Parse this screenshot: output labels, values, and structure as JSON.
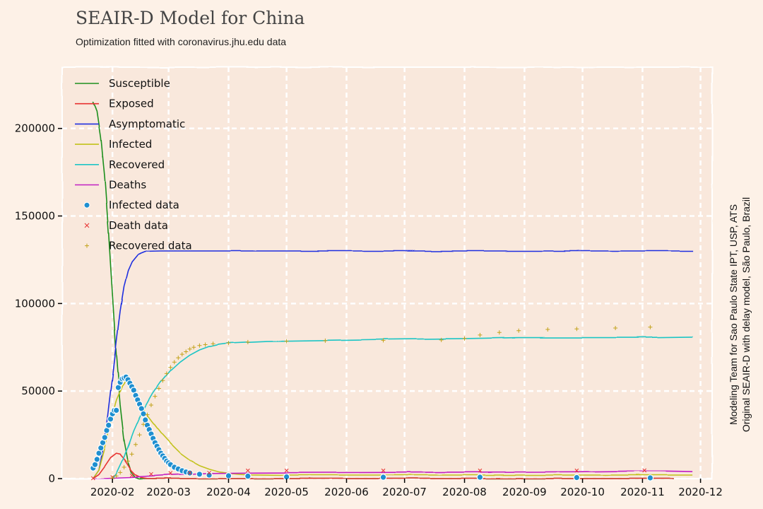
{
  "chart_data": {
    "type": "line",
    "title": "SEAIR-D Model for China",
    "subtitle": "Optimization fitted with coronavirus.jhu.edu data",
    "side_text": [
      "Modeling Team for Sao Paulo State IPT, USP, ATS",
      "Original SEAIR-D with delay model, São Paulo, Brazil"
    ],
    "xlabel": "",
    "ylabel": "",
    "x_ticks": [
      "2020-02",
      "2020-03",
      "2020-04",
      "2020-05",
      "2020-06",
      "2020-07",
      "2020-08",
      "2020-09",
      "2020-10",
      "2020-11",
      "2020-12"
    ],
    "x_tick_days": [
      10,
      39,
      70,
      100,
      131,
      161,
      192,
      223,
      253,
      284,
      314
    ],
    "y_ticks": [
      0,
      50000,
      100000,
      150000,
      200000
    ],
    "xlim_days": [
      -16,
      320
    ],
    "ylim": [
      0,
      235000
    ],
    "grid": true,
    "legend_position": "top-left",
    "x_unit_note": "days since 2020-01-22",
    "series": [
      {
        "name": "Susceptible",
        "kind": "line",
        "color": "#1f8f1f",
        "points": [
          [
            0,
            215000
          ],
          [
            2,
            210000
          ],
          [
            4,
            195000
          ],
          [
            6,
            172000
          ],
          [
            8,
            140000
          ],
          [
            10,
            105000
          ],
          [
            12,
            70000
          ],
          [
            14,
            42000
          ],
          [
            16,
            22000
          ],
          [
            18,
            10000
          ],
          [
            20,
            3500
          ],
          [
            22,
            800
          ],
          [
            24,
            0
          ],
          [
            40,
            0
          ],
          [
            100,
            0
          ],
          [
            200,
            0
          ],
          [
            300,
            0
          ]
        ]
      },
      {
        "name": "Exposed",
        "kind": "line",
        "color": "#e83030",
        "points": [
          [
            0,
            300
          ],
          [
            3,
            2500
          ],
          [
            6,
            7000
          ],
          [
            9,
            12000
          ],
          [
            12,
            14500
          ],
          [
            14,
            14000
          ],
          [
            16,
            11500
          ],
          [
            18,
            8000
          ],
          [
            20,
            4500
          ],
          [
            22,
            2200
          ],
          [
            25,
            600
          ],
          [
            28,
            100
          ],
          [
            40,
            0
          ],
          [
            300,
            0
          ]
        ]
      },
      {
        "name": "Asymptomatic",
        "kind": "line",
        "color": "#1f2fe0",
        "points": [
          [
            0,
            200
          ],
          [
            3,
            5000
          ],
          [
            6,
            22000
          ],
          [
            9,
            50000
          ],
          [
            12,
            78000
          ],
          [
            14,
            96000
          ],
          [
            16,
            110000
          ],
          [
            18,
            119000
          ],
          [
            20,
            124000
          ],
          [
            23,
            128000
          ],
          [
            27,
            129800
          ],
          [
            35,
            130000
          ],
          [
            100,
            130000
          ],
          [
            200,
            130000
          ],
          [
            300,
            130000
          ],
          [
            310,
            130000
          ]
        ]
      },
      {
        "name": "Infected",
        "kind": "line",
        "color": "#c2c21a",
        "points": [
          [
            0,
            200
          ],
          [
            3,
            5000
          ],
          [
            6,
            17000
          ],
          [
            9,
            32000
          ],
          [
            12,
            45000
          ],
          [
            15,
            53000
          ],
          [
            17,
            56000
          ],
          [
            20,
            52000
          ],
          [
            25,
            42000
          ],
          [
            30,
            33000
          ],
          [
            35,
            26000
          ],
          [
            40,
            20000
          ],
          [
            45,
            14500
          ],
          [
            50,
            10500
          ],
          [
            55,
            7500
          ],
          [
            60,
            5500
          ],
          [
            65,
            4000
          ],
          [
            70,
            3200
          ],
          [
            75,
            2700
          ],
          [
            80,
            2300
          ],
          [
            100,
            2000
          ],
          [
            200,
            2000
          ],
          [
            310,
            2000
          ]
        ]
      },
      {
        "name": "Recovered",
        "kind": "line",
        "color": "#1fc5c5",
        "points": [
          [
            10,
            0
          ],
          [
            12,
            3000
          ],
          [
            15,
            10000
          ],
          [
            18,
            18000
          ],
          [
            21,
            27000
          ],
          [
            25,
            37000
          ],
          [
            30,
            47000
          ],
          [
            35,
            55000
          ],
          [
            40,
            61500
          ],
          [
            45,
            66500
          ],
          [
            50,
            70500
          ],
          [
            55,
            73500
          ],
          [
            60,
            75500
          ],
          [
            65,
            76800
          ],
          [
            70,
            77500
          ],
          [
            90,
            78500
          ],
          [
            120,
            79000
          ],
          [
            150,
            79500
          ],
          [
            192,
            80000
          ],
          [
            220,
            80500
          ],
          [
            250,
            80500
          ],
          [
            280,
            80500
          ],
          [
            310,
            81000
          ]
        ]
      },
      {
        "name": "Deaths",
        "kind": "line",
        "color": "#c21fc2",
        "points": [
          [
            0,
            0
          ],
          [
            20,
            800
          ],
          [
            40,
            2200
          ],
          [
            60,
            3100
          ],
          [
            80,
            3300
          ],
          [
            150,
            3500
          ],
          [
            250,
            3900
          ],
          [
            290,
            4400
          ],
          [
            310,
            4000
          ]
        ]
      },
      {
        "name": "Infected data",
        "kind": "scatter",
        "marker": "circle",
        "color": "#1f8fd0",
        "points": [
          [
            0,
            6000
          ],
          [
            1,
            8000
          ],
          [
            2,
            11000
          ],
          [
            3,
            14500
          ],
          [
            4,
            17500
          ],
          [
            5,
            20500
          ],
          [
            6,
            23500
          ],
          [
            7,
            27500
          ],
          [
            8,
            30500
          ],
          [
            9,
            34000
          ],
          [
            10,
            37000
          ],
          [
            11,
            39000
          ],
          [
            12,
            39000
          ],
          [
            13,
            52000
          ],
          [
            14,
            55000
          ],
          [
            15,
            57000
          ],
          [
            16,
            57500
          ],
          [
            17,
            58000
          ],
          [
            18,
            56500
          ],
          [
            19,
            54500
          ],
          [
            20,
            52500
          ],
          [
            21,
            50500
          ],
          [
            22,
            47500
          ],
          [
            23,
            45000
          ],
          [
            24,
            42500
          ],
          [
            25,
            40000
          ],
          [
            26,
            37000
          ],
          [
            27,
            33500
          ],
          [
            28,
            30500
          ],
          [
            29,
            28000
          ],
          [
            30,
            25500
          ],
          [
            31,
            23000
          ],
          [
            32,
            20500
          ],
          [
            33,
            18500
          ],
          [
            34,
            16500
          ],
          [
            35,
            14500
          ],
          [
            36,
            13000
          ],
          [
            37,
            11500
          ],
          [
            38,
            10000
          ],
          [
            39,
            9000
          ],
          [
            40,
            8000
          ],
          [
            42,
            6500
          ],
          [
            44,
            5500
          ],
          [
            46,
            4500
          ],
          [
            48,
            3800
          ],
          [
            50,
            3200
          ],
          [
            55,
            2500
          ],
          [
            60,
            2000
          ],
          [
            70,
            1600
          ],
          [
            80,
            1400
          ],
          [
            100,
            1000
          ],
          [
            150,
            800
          ],
          [
            200,
            800
          ],
          [
            250,
            600
          ],
          [
            288,
            400
          ]
        ]
      },
      {
        "name": "Death data",
        "kind": "scatter",
        "marker": "x",
        "color": "#e83030",
        "points": [
          [
            0,
            200
          ],
          [
            10,
            800
          ],
          [
            20,
            1800
          ],
          [
            30,
            2600
          ],
          [
            40,
            3200
          ],
          [
            50,
            3300
          ],
          [
            60,
            3300
          ],
          [
            80,
            4600
          ],
          [
            100,
            4600
          ],
          [
            150,
            4600
          ],
          [
            200,
            4600
          ],
          [
            250,
            4600
          ],
          [
            285,
            4700
          ]
        ]
      },
      {
        "name": "Recovered data",
        "kind": "scatter",
        "marker": "plus",
        "color": "#c2a21a",
        "points": [
          [
            10,
            300
          ],
          [
            12,
            1500
          ],
          [
            14,
            3500
          ],
          [
            16,
            6500
          ],
          [
            18,
            10000
          ],
          [
            20,
            14000
          ],
          [
            22,
            19500
          ],
          [
            24,
            25000
          ],
          [
            26,
            31000
          ],
          [
            28,
            36500
          ],
          [
            30,
            42000
          ],
          [
            32,
            47000
          ],
          [
            34,
            51500
          ],
          [
            36,
            56000
          ],
          [
            38,
            60000
          ],
          [
            40,
            63500
          ],
          [
            42,
            66500
          ],
          [
            44,
            69000
          ],
          [
            46,
            71000
          ],
          [
            48,
            72500
          ],
          [
            50,
            74000
          ],
          [
            52,
            75000
          ],
          [
            55,
            76000
          ],
          [
            58,
            76500
          ],
          [
            62,
            77000
          ],
          [
            70,
            77500
          ],
          [
            80,
            78000
          ],
          [
            100,
            78500
          ],
          [
            120,
            78800
          ],
          [
            150,
            79000
          ],
          [
            180,
            79200
          ],
          [
            192,
            80000
          ],
          [
            200,
            82000
          ],
          [
            210,
            83500
          ],
          [
            220,
            84500
          ],
          [
            235,
            85200
          ],
          [
            250,
            85500
          ],
          [
            270,
            86000
          ],
          [
            288,
            86500
          ]
        ]
      }
    ]
  }
}
